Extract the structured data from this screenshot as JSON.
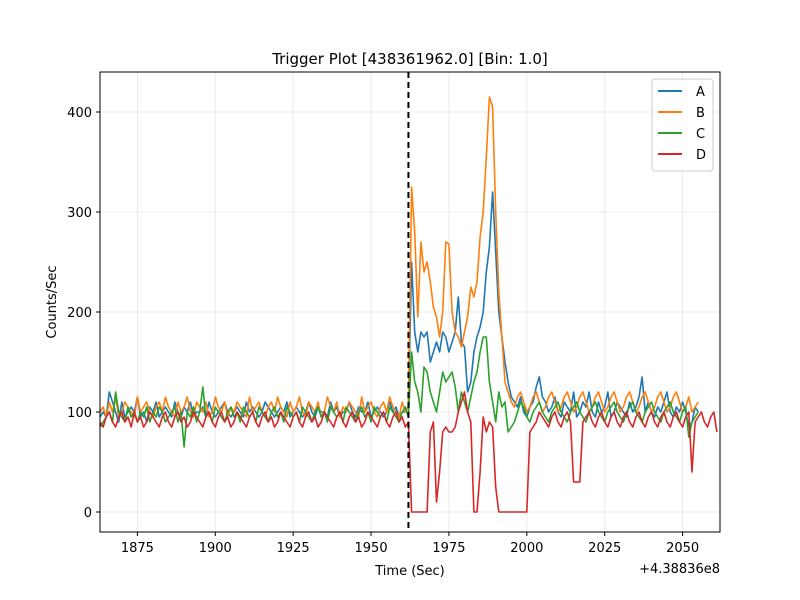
{
  "chart_data": {
    "type": "line",
    "title": "Trigger Plot [438361962.0] [Bin: 1.0]",
    "xlabel": "Time (Sec)",
    "ylabel": "Counts/Sec",
    "x_offset_label": "+4.38836e8",
    "xlim": [
      1863,
      2062
    ],
    "ylim": [
      -20,
      440
    ],
    "x_ticks": [
      1875,
      1900,
      1925,
      1950,
      1975,
      2000,
      2025,
      2050
    ],
    "y_ticks": [
      0,
      100,
      200,
      300,
      400
    ],
    "grid": true,
    "legend_position": "top-right",
    "trigger_time": 1962,
    "trigger_line": {
      "color": "#000000",
      "style": "dashed"
    },
    "series": [
      {
        "name": "A",
        "color": "#1f77b4",
        "x0": 1863,
        "step": 1,
        "values": [
          95,
          100,
          95,
          120,
          110,
          100,
          90,
          110,
          95,
          100,
          105,
          100,
          115,
          95,
          100,
          90,
          105,
          100,
          110,
          95,
          100,
          105,
          100,
          95,
          110,
          100,
          95,
          105,
          100,
          110,
          95,
          100,
          100,
          105,
          95,
          110,
          100,
          95,
          100,
          105,
          110,
          100,
          95,
          100,
          105,
          100,
          95,
          110,
          100,
          105,
          100,
          95,
          100,
          110,
          105,
          100,
          95,
          100,
          105,
          100,
          110,
          95,
          100,
          105,
          100,
          95,
          100,
          110,
          100,
          95,
          105,
          100,
          100,
          95,
          110,
          100,
          105,
          95,
          100,
          100,
          110,
          100,
          95,
          105,
          100,
          100,
          110,
          95,
          100,
          105,
          100,
          95,
          100,
          110,
          100,
          105,
          95,
          100,
          100,
          105,
          250,
          180,
          160,
          180,
          175,
          180,
          150,
          160,
          170,
          160,
          180,
          175,
          160,
          170,
          180,
          215,
          170,
          165,
          120,
          130,
          160,
          175,
          185,
          200,
          240,
          265,
          320,
          260,
          200,
          175,
          150,
          130,
          115,
          110,
          105,
          115,
          100,
          95,
          105,
          110,
          125,
          135,
          115,
          110,
          100,
          105,
          115,
          100,
          95,
          110,
          105,
          100,
          120,
          95,
          100,
          110,
          105,
          120,
          100,
          95,
          110,
          100,
          105,
          120,
          95,
          100,
          110,
          105,
          100,
          95,
          110,
          100,
          105,
          115,
          135,
          100,
          110,
          100,
          95,
          105,
          100,
          110,
          120,
          100,
          95,
          105,
          100,
          110,
          100,
          85,
          90,
          105,
          100
        ]
      },
      {
        "name": "B",
        "color": "#ff7f0e",
        "x0": 1863,
        "step": 1,
        "values": [
          100,
          105,
          95,
          110,
          100,
          115,
          95,
          100,
          110,
          105,
          100,
          95,
          115,
          100,
          105,
          110,
          100,
          95,
          105,
          110,
          100,
          115,
          105,
          100,
          95,
          110,
          100,
          105,
          115,
          100,
          95,
          110,
          105,
          100,
          110,
          95,
          100,
          115,
          105,
          100,
          110,
          95,
          105,
          100,
          110,
          105,
          100,
          95,
          115,
          100,
          105,
          110,
          100,
          95,
          105,
          110,
          100,
          115,
          105,
          100,
          95,
          110,
          100,
          105,
          115,
          100,
          95,
          110,
          105,
          100,
          110,
          95,
          100,
          115,
          105,
          100,
          110,
          95,
          105,
          100,
          110,
          105,
          100,
          95,
          115,
          100,
          105,
          110,
          100,
          95,
          105,
          110,
          100,
          115,
          105,
          100,
          95,
          110,
          100,
          105,
          325,
          280,
          195,
          270,
          240,
          250,
          230,
          205,
          195,
          175,
          200,
          270,
          268,
          200,
          180,
          175,
          165,
          180,
          195,
          225,
          215,
          230,
          275,
          300,
          355,
          415,
          405,
          300,
          220,
          175,
          130,
          120,
          110,
          105,
          115,
          120,
          110,
          100,
          105,
          115,
          120,
          110,
          100,
          105,
          115,
          120,
          110,
          100,
          105,
          115,
          120,
          110,
          100,
          105,
          115,
          120,
          110,
          100,
          105,
          115,
          120,
          110,
          100,
          105,
          115,
          120,
          110,
          100,
          105,
          115,
          120,
          110,
          100,
          105,
          115,
          120,
          110,
          100,
          105,
          115,
          120,
          110,
          100,
          105,
          115,
          120,
          110,
          100,
          105,
          115,
          100,
          105,
          110
        ]
      },
      {
        "name": "C",
        "color": "#2ca02c",
        "x0": 1863,
        "step": 1,
        "values": [
          85,
          90,
          95,
          100,
          90,
          120,
          100,
          95,
          90,
          105,
          95,
          100,
          90,
          100,
          95,
          105,
          90,
          100,
          95,
          105,
          100,
          90,
          95,
          100,
          105,
          90,
          100,
          65,
          100,
          95,
          105,
          90,
          100,
          125,
          95,
          100,
          90,
          105,
          100,
          95,
          90,
          100,
          105,
          95,
          100,
          90,
          105,
          100,
          95,
          100,
          90,
          105,
          100,
          95,
          90,
          100,
          105,
          95,
          100,
          90,
          105,
          100,
          95,
          100,
          90,
          105,
          100,
          95,
          90,
          100,
          105,
          95,
          100,
          90,
          105,
          100,
          95,
          100,
          90,
          105,
          100,
          95,
          90,
          100,
          105,
          95,
          100,
          90,
          105,
          100,
          95,
          100,
          90,
          105,
          100,
          95,
          90,
          100,
          105,
          95,
          160,
          130,
          120,
          100,
          145,
          140,
          120,
          110,
          100,
          120,
          140,
          130,
          135,
          140,
          125,
          100,
          120,
          110,
          100,
          115,
          130,
          140,
          160,
          175,
          175,
          130,
          110,
          90,
          120,
          105,
          110,
          80,
          85,
          90,
          100,
          110,
          105,
          95,
          90,
          100,
          105,
          110,
          100,
          95,
          90,
          100,
          105,
          110,
          100,
          95,
          90,
          100,
          105,
          110,
          100,
          95,
          90,
          100,
          105,
          110,
          100,
          95,
          90,
          100,
          105,
          110,
          100,
          95,
          90,
          100,
          105,
          110,
          100,
          95,
          90,
          100,
          105,
          110,
          100,
          95,
          90,
          100,
          105,
          110,
          100,
          95,
          90,
          100,
          105,
          75,
          90,
          95,
          100
        ]
      },
      {
        "name": "D",
        "color": "#d62728",
        "x0": 1863,
        "step": 1,
        "values": [
          90,
          85,
          95,
          100,
          90,
          85,
          95,
          100,
          90,
          95,
          85,
          100,
          90,
          95,
          85,
          90,
          100,
          95,
          90,
          85,
          95,
          100,
          90,
          85,
          95,
          100,
          90,
          95,
          85,
          90,
          100,
          95,
          90,
          85,
          95,
          100,
          90,
          85,
          95,
          100,
          90,
          95,
          85,
          90,
          100,
          95,
          90,
          85,
          95,
          100,
          90,
          85,
          95,
          100,
          90,
          95,
          85,
          90,
          100,
          95,
          90,
          85,
          95,
          100,
          90,
          85,
          95,
          100,
          90,
          95,
          85,
          90,
          100,
          95,
          90,
          85,
          95,
          100,
          90,
          85,
          95,
          100,
          90,
          95,
          85,
          90,
          100,
          95,
          90,
          85,
          95,
          100,
          90,
          85,
          95,
          100,
          90,
          95,
          85,
          90,
          0,
          0,
          0,
          0,
          0,
          0,
          80,
          90,
          10,
          40,
          80,
          85,
          80,
          80,
          85,
          100,
          110,
          120,
          100,
          90,
          0,
          0,
          40,
          95,
          80,
          90,
          85,
          25,
          0,
          0,
          0,
          0,
          0,
          0,
          0,
          0,
          0,
          0,
          80,
          85,
          90,
          100,
          95,
          90,
          85,
          95,
          100,
          90,
          85,
          95,
          100,
          90,
          30,
          30,
          30,
          90,
          95,
          100,
          90,
          85,
          95,
          100,
          90,
          85,
          95,
          100,
          90,
          85,
          95,
          100,
          90,
          85,
          95,
          100,
          90,
          85,
          95,
          100,
          90,
          85,
          95,
          100,
          90,
          85,
          95,
          100,
          90,
          85,
          95,
          100,
          40,
          90,
          95,
          100,
          90,
          85,
          95,
          100,
          80
        ]
      }
    ]
  }
}
